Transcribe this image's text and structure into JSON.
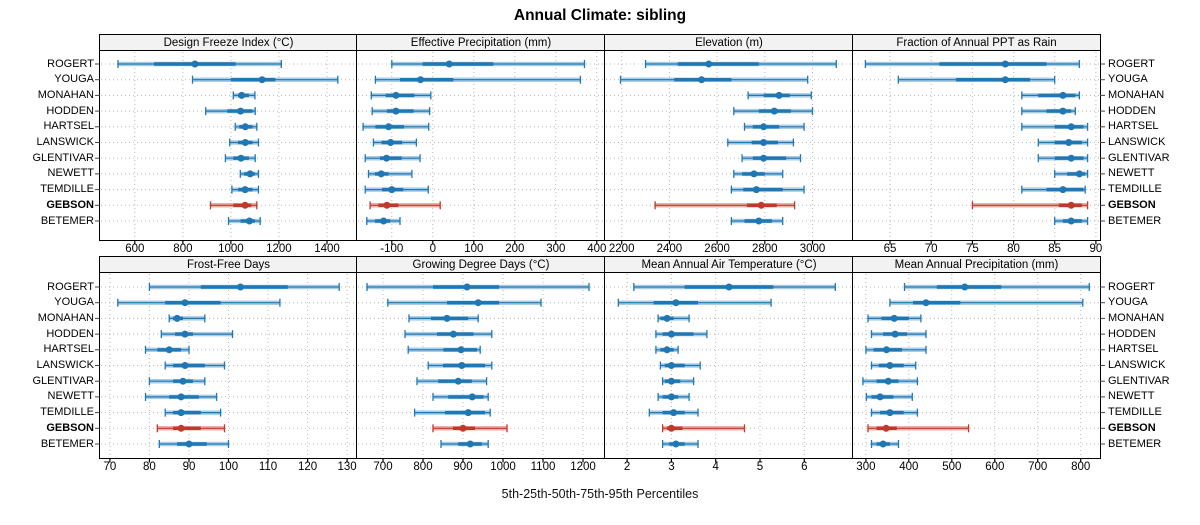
{
  "title": "Annual Climate: sibling",
  "footer": "5th-25th-50th-75th-95th Percentiles",
  "stations": [
    "ROGERT",
    "YOUGA",
    "MONAHAN",
    "HODDEN",
    "HARTSEL",
    "LANSWICK",
    "GLENTIVAR",
    "NEWETT",
    "TEMDILLE",
    "GEBSON",
    "BETEMER"
  ],
  "highlight_station": "GEBSON",
  "percentiles": [
    5,
    25,
    50,
    75,
    95
  ],
  "colors": {
    "series": "#1f77b4",
    "series_light": "#a9cde6",
    "highlight": "#c0392b",
    "highlight_light": "#e8b1aa",
    "grid": "#b8b8b8",
    "strip_bg": "#f2f2f2",
    "border": "#000000"
  },
  "chart_data": [
    {
      "type": "dot-whisker",
      "title": "Design Freeze Index (°C)",
      "row": 0,
      "col": 0,
      "xlim": [
        455,
        1525
      ],
      "ticks": [
        600,
        800,
        1000,
        1200,
        1400
      ],
      "tick_labels": [
        "600",
        "800",
        "1000",
        "1200",
        "1400"
      ],
      "values": [
        [
          530,
          680,
          850,
          1020,
          1210
        ],
        [
          840,
          1000,
          1130,
          1185,
          1445
        ],
        [
          1010,
          1030,
          1045,
          1075,
          1100
        ],
        [
          895,
          985,
          1040,
          1090,
          1101
        ],
        [
          1018,
          1035,
          1060,
          1090,
          1108
        ],
        [
          995,
          1030,
          1060,
          1090,
          1115
        ],
        [
          977,
          1010,
          1042,
          1075,
          1101
        ],
        [
          1039,
          1055,
          1080,
          1100,
          1115
        ],
        [
          1004,
          1030,
          1059,
          1090,
          1115
        ],
        [
          915,
          1010,
          1059,
          1085,
          1108
        ],
        [
          990,
          1040,
          1077,
          1100,
          1122
        ]
      ]
    },
    {
      "type": "dot-whisker",
      "title": "Effective Precipitation (mm)",
      "row": 0,
      "col": 1,
      "xlim": [
        -185,
        420
      ],
      "ticks": [
        -100,
        0,
        100,
        200,
        300,
        400
      ],
      "tick_labels": [
        "-100",
        "0",
        "100",
        "200",
        "300",
        "400"
      ],
      "values": [
        [
          -100,
          -25,
          40,
          148,
          370
        ],
        [
          -140,
          -80,
          -30,
          50,
          360
        ],
        [
          -150,
          -115,
          -90,
          -45,
          -5
        ],
        [
          -148,
          -112,
          -90,
          -47,
          -8
        ],
        [
          -170,
          -140,
          -108,
          -70,
          -10
        ],
        [
          -145,
          -125,
          -103,
          -75,
          -40
        ],
        [
          -165,
          -129,
          -113,
          -76,
          -31
        ],
        [
          -157,
          -141,
          -126,
          -108,
          -51
        ],
        [
          -165,
          -124,
          -100,
          -72,
          -11
        ],
        [
          -153,
          -133,
          -112,
          -84,
          18
        ],
        [
          -161,
          -141,
          -120,
          -104,
          -80
        ]
      ]
    },
    {
      "type": "dot-whisker",
      "title": "Elevation (m)",
      "row": 0,
      "col": 2,
      "xlim": [
        2130,
        3170
      ],
      "ticks": [
        2200,
        2400,
        2600,
        2800,
        3000
      ],
      "tick_labels": [
        "2200",
        "2400",
        "2600",
        "2800",
        "3000"
      ],
      "values": [
        [
          2300,
          2435,
          2565,
          2775,
          3100
        ],
        [
          2195,
          2420,
          2535,
          2660,
          2980
        ],
        [
          2730,
          2795,
          2860,
          2905,
          2995
        ],
        [
          2670,
          2775,
          2840,
          2910,
          3000
        ],
        [
          2715,
          2750,
          2795,
          2860,
          2965
        ],
        [
          2645,
          2745,
          2795,
          2855,
          2920
        ],
        [
          2705,
          2750,
          2795,
          2890,
          2950
        ],
        [
          2670,
          2705,
          2755,
          2800,
          2875
        ],
        [
          2660,
          2710,
          2765,
          2875,
          2965
        ],
        [
          2340,
          2725,
          2785,
          2850,
          2925
        ],
        [
          2660,
          2715,
          2775,
          2830,
          2875
        ]
      ]
    },
    {
      "type": "dot-whisker",
      "title": "Fraction of Annual PPT as Rain",
      "row": 0,
      "col": 3,
      "xlim": [
        60.5,
        90.5
      ],
      "ticks": [
        65,
        70,
        75,
        80,
        85,
        90
      ],
      "tick_labels": [
        "65",
        "70",
        "75",
        "80",
        "85",
        "90"
      ],
      "values": [
        [
          62,
          71,
          79,
          84,
          88
        ],
        [
          66,
          73,
          79,
          82,
          85
        ],
        [
          81,
          83,
          86,
          87.5,
          88
        ],
        [
          81,
          84,
          86,
          87,
          87.5
        ],
        [
          81,
          85,
          87,
          88.5,
          89
        ],
        [
          83,
          85,
          86.7,
          88.3,
          89
        ],
        [
          83,
          85,
          87,
          88.5,
          89
        ],
        [
          85,
          86.5,
          88,
          88.7,
          89
        ],
        [
          81,
          84,
          86,
          88.5,
          88.7
        ],
        [
          75,
          85.5,
          87,
          88.3,
          89
        ],
        [
          85,
          86,
          87,
          88.3,
          89
        ]
      ]
    },
    {
      "type": "dot-whisker",
      "title": "Frost-Free Days",
      "row": 1,
      "col": 0,
      "xlim": [
        67.5,
        132.5
      ],
      "ticks": [
        70,
        80,
        90,
        100,
        110,
        120,
        130
      ],
      "tick_labels": [
        "70",
        "80",
        "90",
        "100",
        "110",
        "120",
        "130"
      ],
      "values": [
        [
          80,
          93,
          103,
          115,
          128
        ],
        [
          72,
          84,
          89,
          98,
          113
        ],
        [
          85,
          86,
          87,
          88.5,
          94
        ],
        [
          83,
          86.5,
          89,
          91,
          101
        ],
        [
          79,
          82,
          85,
          88,
          90
        ],
        [
          84,
          86,
          89,
          94,
          99
        ],
        [
          80,
          86,
          88.5,
          91,
          94
        ],
        [
          79,
          85,
          88,
          92.5,
          97
        ],
        [
          84,
          86,
          88,
          93,
          98
        ],
        [
          82,
          86,
          88,
          93,
          99
        ],
        [
          82.5,
          87,
          90,
          94.5,
          100
        ]
      ]
    },
    {
      "type": "dot-whisker",
      "title": "Growing Degree Days (°C)",
      "row": 1,
      "col": 1,
      "xlim": [
        635,
        1255
      ],
      "ticks": [
        700,
        800,
        900,
        1000,
        1100,
        1200
      ],
      "tick_labels": [
        "700",
        "800",
        "900",
        "1000",
        "1100",
        "1200"
      ],
      "values": [
        [
          660,
          825,
          910,
          990,
          1215
        ],
        [
          712,
          860,
          938,
          990,
          1095
        ],
        [
          765,
          820,
          860,
          913,
          938
        ],
        [
          755,
          835,
          876,
          926,
          972
        ],
        [
          763,
          851,
          895,
          935,
          943
        ],
        [
          813,
          850,
          897,
          955,
          972
        ],
        [
          785,
          838,
          888,
          922,
          959
        ],
        [
          825,
          863,
          923,
          951,
          963
        ],
        [
          779,
          855,
          913,
          955,
          968
        ],
        [
          825,
          875,
          900,
          930,
          1010
        ],
        [
          845,
          888,
          918,
          947,
          963
        ]
      ]
    },
    {
      "type": "dot-whisker",
      "title": "Mean Annual Air Temperature (°C)",
      "row": 1,
      "col": 2,
      "xlim": [
        1.5,
        7.1
      ],
      "ticks": [
        2,
        3,
        4,
        5,
        6
      ],
      "tick_labels": [
        "2",
        "3",
        "4",
        "5",
        "6"
      ],
      "values": [
        [
          2.15,
          3.3,
          4.3,
          5.3,
          6.7
        ],
        [
          1.8,
          2.6,
          3.1,
          3.6,
          5.25
        ],
        [
          2.7,
          2.75,
          2.9,
          3.05,
          3.4
        ],
        [
          2.65,
          2.8,
          3.0,
          3.5,
          3.8
        ],
        [
          2.65,
          2.75,
          2.9,
          3.05,
          3.15
        ],
        [
          2.75,
          2.85,
          3.0,
          3.3,
          3.65
        ],
        [
          2.8,
          2.85,
          3.0,
          3.2,
          3.5
        ],
        [
          2.7,
          2.8,
          3.0,
          3.15,
          3.4
        ],
        [
          2.5,
          2.8,
          3.05,
          3.3,
          3.6
        ],
        [
          2.8,
          2.9,
          3.0,
          3.25,
          4.65
        ],
        [
          2.8,
          2.95,
          3.1,
          3.3,
          3.6
        ]
      ]
    },
    {
      "type": "dot-whisker",
      "title": "Mean Annual Precipitation (mm)",
      "row": 1,
      "col": 3,
      "xlim": [
        270,
        845
      ],
      "ticks": [
        300,
        400,
        500,
        600,
        700,
        800
      ],
      "tick_labels": [
        "300",
        "400",
        "500",
        "600",
        "700",
        "800"
      ],
      "values": [
        [
          390,
          465,
          530,
          615,
          820
        ],
        [
          356,
          410,
          440,
          520,
          805
        ],
        [
          305,
          336,
          366,
          400,
          428
        ],
        [
          313,
          340,
          368,
          396,
          440
        ],
        [
          300,
          318,
          348,
          384,
          440
        ],
        [
          313,
          330,
          356,
          388,
          416
        ],
        [
          293,
          325,
          352,
          376,
          420
        ],
        [
          301,
          313,
          333,
          364,
          408
        ],
        [
          313,
          333,
          356,
          388,
          420
        ],
        [
          305,
          325,
          347,
          372,
          539
        ],
        [
          313,
          325,
          340,
          356,
          376
        ]
      ]
    }
  ]
}
